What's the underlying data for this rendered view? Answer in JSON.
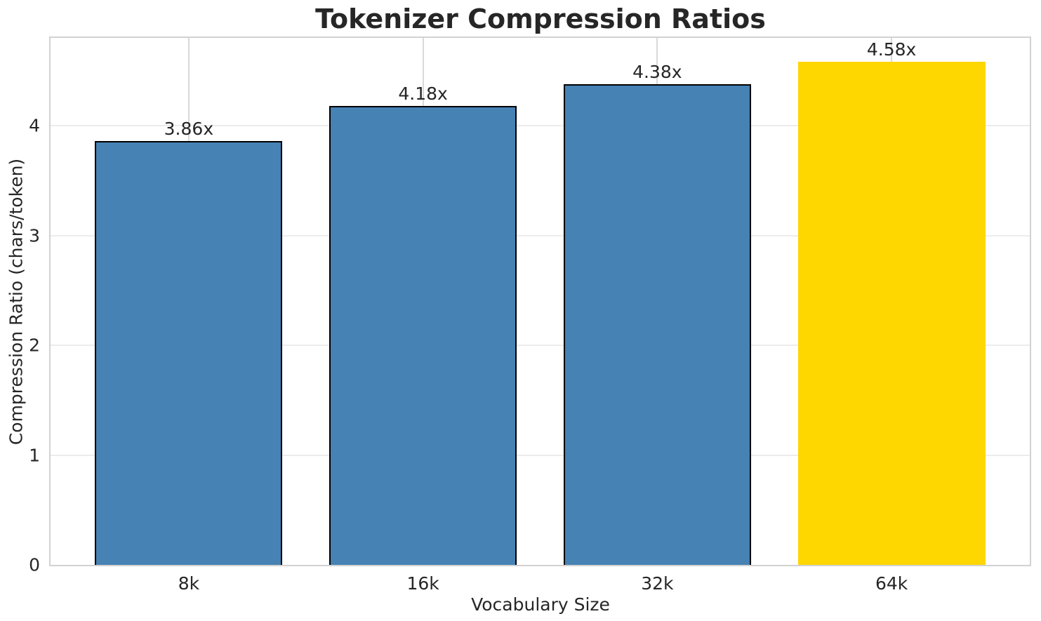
{
  "chart_data": {
    "type": "bar",
    "title": "Tokenizer Compression Ratios",
    "xlabel": "Vocabulary Size",
    "ylabel": "Compression Ratio (chars/token)",
    "categories": [
      "8k",
      "16k",
      "32k",
      "64k"
    ],
    "values": [
      3.86,
      4.18,
      4.38,
      4.58
    ],
    "bar_labels": [
      "3.86x",
      "4.18x",
      "4.38x",
      "4.58x"
    ],
    "ylim": [
      0,
      4.8
    ],
    "yticks": [
      0,
      1,
      2,
      3,
      4
    ],
    "xlim": [
      -0.59,
      3.59
    ],
    "bar_width_units": 0.8,
    "grid": "both",
    "legend_position": "none",
    "highlight_index": 3,
    "bar_colors": [
      "#4682B4",
      "#4682B4",
      "#4682B4",
      "#FFD700"
    ],
    "bar_edge_colors": [
      "#000000",
      "#000000",
      "#000000",
      "none"
    ],
    "colors": {
      "default_bar": "#4682B4",
      "highlight_bar": "#FFD700",
      "bar_edge": "#000000",
      "grid_horizontal": "#ececec",
      "grid_vertical": "#d9d9d9",
      "spine": "#d2d2d2",
      "text": "#262626",
      "background": "#ffffff"
    }
  }
}
